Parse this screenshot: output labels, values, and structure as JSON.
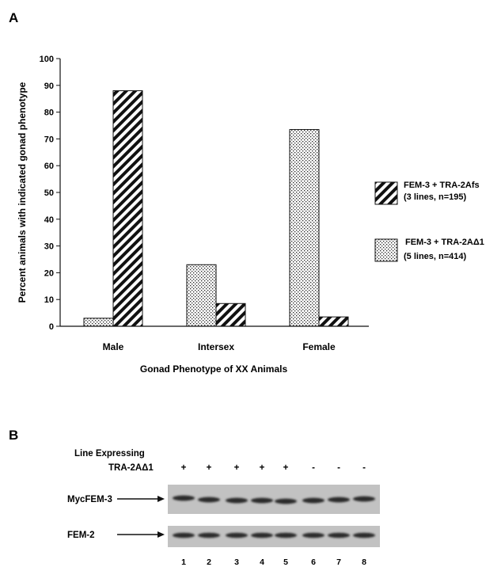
{
  "figure": {
    "panel_a_letter": "A",
    "panel_b_letter": "B"
  },
  "chart_data": {
    "type": "bar",
    "title": "",
    "xlabel": "Gonad Phenotype of XX Animals",
    "ylabel": "Percent animals with indicated gonad phenotype",
    "ylim": [
      0,
      100
    ],
    "yticks": [
      0,
      10,
      20,
      30,
      40,
      50,
      60,
      70,
      80,
      90,
      100
    ],
    "categories": [
      "Male",
      "Intersex",
      "Female"
    ],
    "grid": false,
    "legend_position": "right",
    "series": [
      {
        "name": "FEM-3 + TRA-2AΔ1",
        "legend_line1": "FEM-3 + TRA-2AΔ1",
        "legend_line2": "(5 lines, n=414)",
        "pattern": "dotted",
        "values": [
          3,
          23,
          73.5
        ]
      },
      {
        "name": "FEM-3 + TRA-2Afs",
        "legend_line1": "FEM-3 + TRA-2Afs",
        "legend_line2": "(3 lines, n=195)",
        "pattern": "hatched",
        "values": [
          88,
          8.5,
          3.5
        ]
      }
    ]
  },
  "blot": {
    "header_line1": "Line Expressing",
    "header_line2": "TRA-2AΔ1",
    "signs": [
      "+",
      "+",
      "+",
      "+",
      "+",
      "-",
      "-",
      "-"
    ],
    "lanes": [
      "1",
      "2",
      "3",
      "4",
      "5",
      "6",
      "7",
      "8"
    ],
    "rows": [
      {
        "label": "MycFEM-3"
      },
      {
        "label": "FEM-2"
      }
    ]
  }
}
